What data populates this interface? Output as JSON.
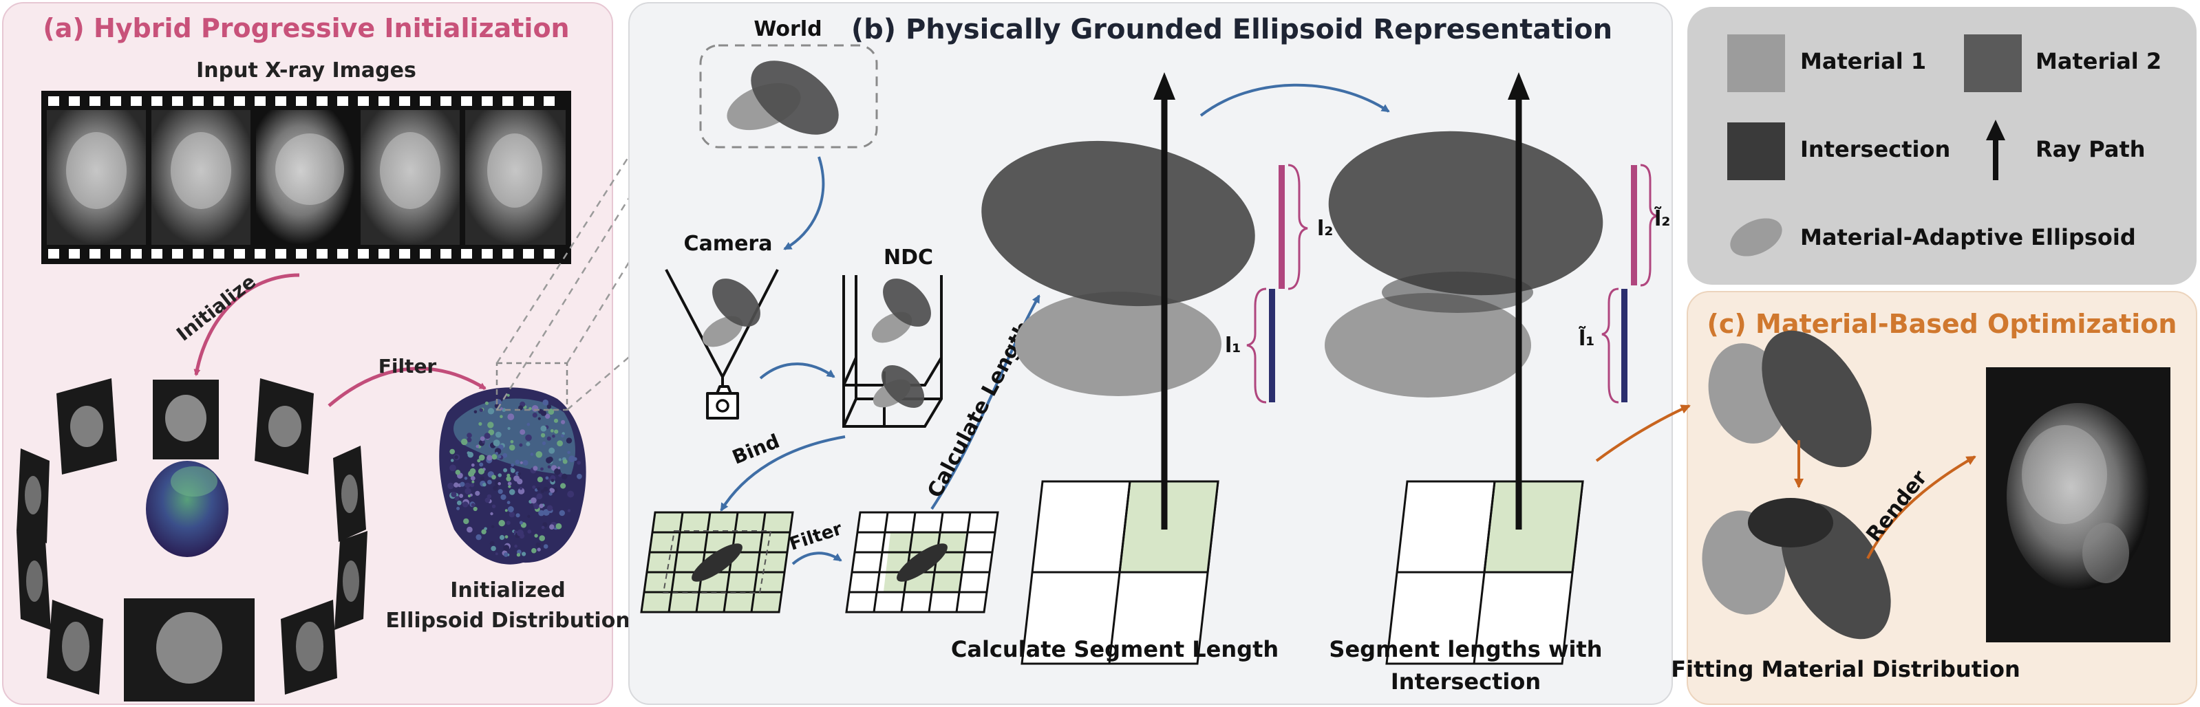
{
  "panel_a": {
    "title": "(a) Hybrid Progressive Initialization",
    "input_label": "Input X-ray Images",
    "initialize_label": "Initialize",
    "filter_label": "Filter",
    "result_label_line1": "Initialized",
    "result_label_line2": "Ellipsoid Distribution"
  },
  "panel_b": {
    "title": "(b) Physically Grounded Ellipsoid Representation",
    "world_label": "World",
    "camera_label": "Camera",
    "ndc_label": "NDC",
    "bind_label": "Bind",
    "filter_label": "Filter",
    "calc_length_label": "Calculate Length",
    "caption_left": "Calculate Segment Length",
    "caption_right_line1": "Segment lengths with",
    "caption_right_line2": "Intersection",
    "l1": "l₁",
    "l2": "l₂",
    "l1_tilde": "l̃₁",
    "l2_tilde": "l̃₂"
  },
  "legend": {
    "material1": "Material 1",
    "material2": "Material 2",
    "intersection": "Intersection",
    "ray_path": "Ray Path",
    "ellipsoid": "Material-Adaptive Ellipsoid"
  },
  "panel_c": {
    "title": "(c) Material-Based Optimization",
    "render_label": "Render",
    "caption": "Fitting Material Distribution"
  },
  "colors": {
    "panel_a_bg": "#f8eaee",
    "panel_a_title": "#c8527a",
    "panel_b_bg": "#f2f3f5",
    "legend_bg": "#cfcfcf",
    "panel_c_bg": "#f8ebde",
    "panel_c_title": "#d0782e",
    "material1": "#9c9c9c",
    "material2": "#5a5a5a",
    "intersection": "#3a3a3a",
    "pink_arrow": "#c24d7a",
    "blue_arrow": "#3f6ea6",
    "orange_arrow": "#c8641e",
    "green_cell": "#d7e6c8",
    "magenta_bar": "#b0467e",
    "navy_bar": "#2c2f6e"
  }
}
